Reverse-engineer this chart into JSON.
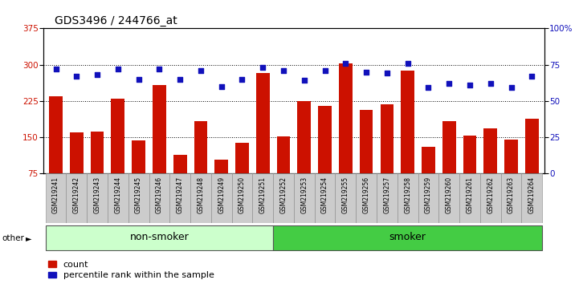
{
  "title": "GDS3496 / 244766_at",
  "samples": [
    "GSM219241",
    "GSM219242",
    "GSM219243",
    "GSM219244",
    "GSM219245",
    "GSM219246",
    "GSM219247",
    "GSM219248",
    "GSM219249",
    "GSM219250",
    "GSM219251",
    "GSM219252",
    "GSM219253",
    "GSM219254",
    "GSM219255",
    "GSM219256",
    "GSM219257",
    "GSM219258",
    "GSM219259",
    "GSM219260",
    "GSM219261",
    "GSM219262",
    "GSM219263",
    "GSM219264"
  ],
  "counts": [
    235,
    160,
    162,
    230,
    143,
    258,
    113,
    183,
    103,
    138,
    283,
    152,
    225,
    215,
    303,
    207,
    218,
    288,
    130,
    183,
    153,
    168,
    145,
    188
  ],
  "percentile": [
    72,
    67,
    68,
    72,
    65,
    72,
    65,
    71,
    60,
    65,
    73,
    71,
    64,
    71,
    76,
    70,
    69,
    76,
    59,
    62,
    61,
    62,
    59,
    67
  ],
  "non_smoker_count": 11,
  "smoker_count": 13,
  "ylim_left": [
    75,
    375
  ],
  "ylim_right": [
    0,
    100
  ],
  "yticks_left": [
    75,
    150,
    225,
    300,
    375
  ],
  "yticks_right": [
    0,
    25,
    50,
    75,
    100
  ],
  "bar_color": "#cc1100",
  "dot_color": "#1111bb",
  "nonsmoker_bg": "#ccffcc",
  "smoker_bg": "#44cc44",
  "label_bg": "#cccccc",
  "title_fontsize": 10,
  "tick_fontsize": 7.5,
  "legend_fontsize": 8,
  "group_label_fontsize": 9,
  "other_label": "other"
}
